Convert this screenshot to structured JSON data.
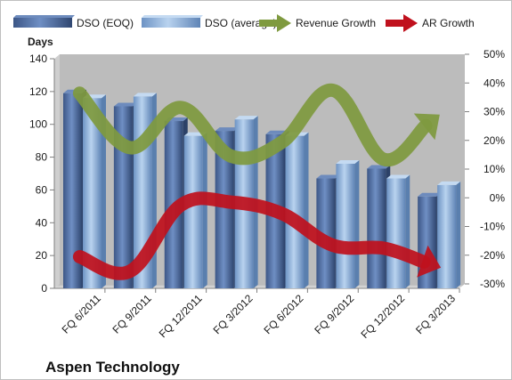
{
  "chart_data": {
    "type": "bar",
    "title": "Aspen Technology",
    "ylabel": "Days",
    "categories": [
      "FQ 6/2011",
      "FQ 9/2011",
      "FQ 12/2011",
      "FQ 3/2012",
      "FQ 6/2012",
      "FQ 9/2012",
      "FQ 12/2012",
      "FQ 3/2013"
    ],
    "ylim": [
      0,
      140
    ],
    "y_ticks": [
      "0",
      "20",
      "40",
      "60",
      "80",
      "100",
      "120",
      "140"
    ],
    "y2lim": [
      -0.3,
      0.5
    ],
    "y2_ticks": [
      "-30%",
      "-20%",
      "-10%",
      "0%",
      "10%",
      "20%",
      "30%",
      "40%",
      "50%"
    ],
    "grid": false,
    "legend_position": "top",
    "series": [
      {
        "name": "DSO (EOQ)",
        "kind": "bar",
        "axis": "left",
        "color": "#4f6fa3",
        "values": [
          119,
          111,
          102,
          96,
          94,
          67,
          73,
          56
        ]
      },
      {
        "name": "DSO (average)",
        "kind": "bar",
        "axis": "left",
        "color": "#8fb3dd",
        "values": [
          116,
          117,
          93,
          103,
          93,
          76,
          67,
          63
        ]
      },
      {
        "name": "Revenue Growth",
        "kind": "line-arrow",
        "axis": "right",
        "color": "#7f9a3f",
        "values": [
          0.38,
          0.19,
          0.33,
          0.16,
          0.21,
          0.39,
          0.15,
          0.29
        ]
      },
      {
        "name": "AR Growth",
        "kind": "line-arrow",
        "axis": "right",
        "color": "#c0111d",
        "values": [
          -0.19,
          -0.24,
          -0.01,
          0.0,
          -0.04,
          -0.15,
          -0.16,
          -0.22
        ]
      }
    ]
  }
}
